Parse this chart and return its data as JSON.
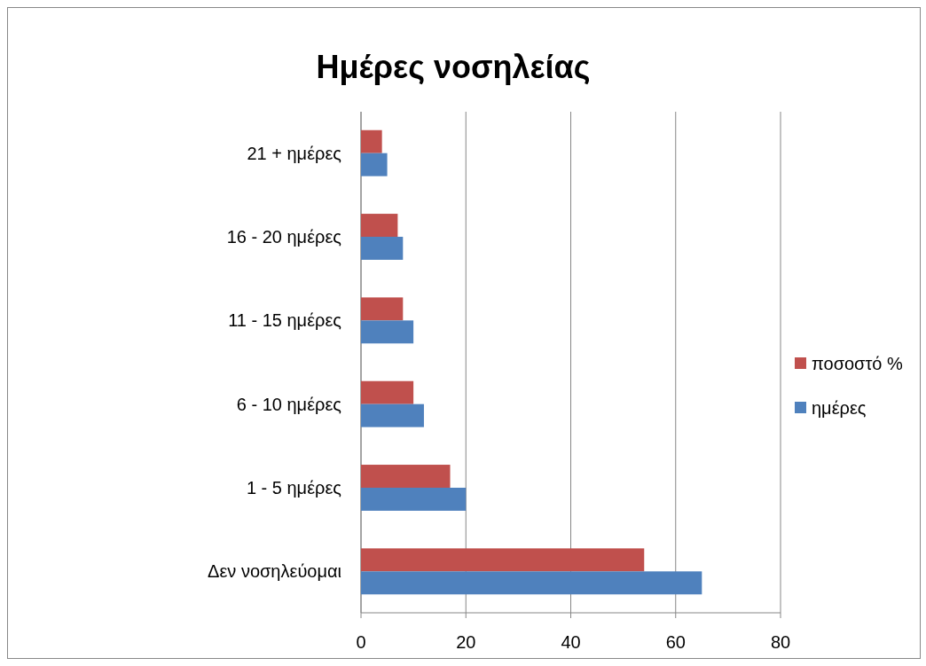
{
  "chart_data": {
    "type": "bar",
    "orientation": "horizontal",
    "title": "Ημέρες νοσηλείας",
    "categories": [
      "21 + ημέρες",
      "16 - 20 ημέρες",
      "11 - 15 ημέρες",
      "6 - 10 ημέρες",
      "1 - 5 ημέρες",
      "Δεν νοσηλεύομαι"
    ],
    "series": [
      {
        "name": "ποσοστό %",
        "color": "#c0504d",
        "values": [
          4,
          7,
          8,
          10,
          17,
          54
        ]
      },
      {
        "name": "ημέρες",
        "color": "#4f81bd",
        "values": [
          5,
          8,
          10,
          12,
          20,
          65
        ]
      }
    ],
    "xlim": [
      0,
      80
    ],
    "xticks": [
      0,
      20,
      40,
      60,
      80
    ],
    "grid": "x",
    "legend": "right"
  }
}
